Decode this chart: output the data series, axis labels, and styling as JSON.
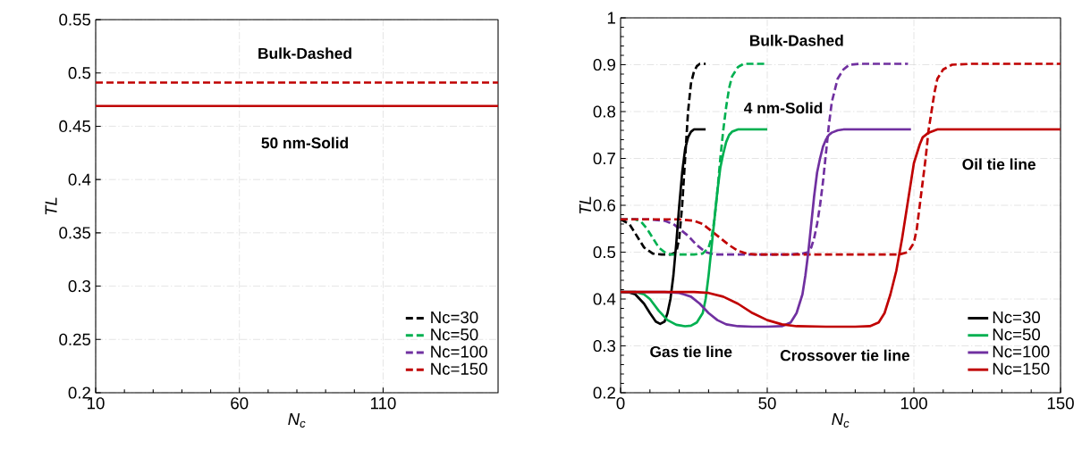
{
  "chart_data": [
    {
      "type": "line",
      "xlabel": "N$_{c}$",
      "ylabel": "TL",
      "xlim": [
        10,
        150
      ],
      "ylim": [
        0.2,
        0.55
      ],
      "xticks": [
        10,
        60,
        110
      ],
      "yticks": [
        0.2,
        0.25,
        0.3,
        0.35,
        0.4,
        0.45,
        0.5,
        0.55
      ],
      "grid": true,
      "legend": "bottom right",
      "annotations": [
        "Bulk-Dashed",
        "50 nm-Solid"
      ],
      "series": [
        {
          "name": "Nc=30",
          "color": "#000000",
          "line_style": "dashed",
          "values": [
            null
          ]
        },
        {
          "name": "Nc=50",
          "color": "#00b050",
          "line_style": "dashed",
          "values": [
            null
          ]
        },
        {
          "name": "Nc=100",
          "color": "#7030a0",
          "line_style": "dashed",
          "values": [
            null
          ]
        },
        {
          "name": "Nc=150",
          "color": "#c00000",
          "line_style": "dashed",
          "x": [
            10,
            150
          ],
          "values": [
            0.491,
            0.491
          ]
        },
        {
          "color": "#c00000",
          "line_style": "solid",
          "x": [
            10,
            150
          ],
          "values": [
            0.469,
            0.469
          ]
        }
      ]
    },
    {
      "type": "line",
      "xlabel": "N$_{c}$",
      "ylabel": "TL",
      "xlim": [
        0,
        150
      ],
      "ylim": [
        0.2,
        1
      ],
      "xticks": [
        0,
        50,
        100,
        150
      ],
      "yticks": [
        0.2,
        0.3,
        0.4,
        0.5,
        0.6,
        0.7,
        0.8,
        0.9,
        1
      ],
      "grid": true,
      "legend": "bottom right",
      "annotations": [
        "Bulk-Dashed",
        "4 nm-Solid",
        "Oil tie line",
        "Gas tie line",
        "Crossover tie line"
      ],
      "series": [
        {
          "color": "#000000",
          "line_style": "dashed",
          "x": [
            0,
            3,
            5,
            8,
            11,
            14,
            17,
            19,
            20,
            21,
            22,
            23,
            24,
            25,
            26,
            27,
            29
          ],
          "values": [
            0.57,
            0.56,
            0.54,
            0.51,
            0.497,
            0.495,
            0.495,
            0.5,
            0.53,
            0.6,
            0.7,
            0.8,
            0.86,
            0.885,
            0.897,
            0.902,
            0.902
          ]
        },
        {
          "color": "#00b050",
          "line_style": "dashed",
          "x": [
            0,
            5,
            7,
            9,
            11,
            13,
            15,
            17,
            20,
            25,
            28,
            30,
            31,
            32,
            33,
            34,
            35,
            36,
            37,
            38,
            40,
            42,
            45,
            50
          ],
          "values": [
            0.57,
            0.57,
            0.565,
            0.55,
            0.53,
            0.51,
            0.5,
            0.495,
            0.495,
            0.495,
            0.497,
            0.51,
            0.53,
            0.57,
            0.63,
            0.7,
            0.76,
            0.81,
            0.85,
            0.875,
            0.895,
            0.902,
            0.902,
            0.902
          ]
        },
        {
          "color": "#7030a0",
          "line_style": "dashed",
          "x": [
            0,
            10,
            15,
            18,
            20,
            23,
            26,
            29,
            32,
            35,
            40,
            50,
            58,
            62,
            64,
            65,
            66,
            67,
            68,
            69,
            70,
            71,
            72,
            74,
            76,
            78,
            82,
            98
          ],
          "values": [
            0.57,
            0.57,
            0.567,
            0.56,
            0.55,
            0.535,
            0.515,
            0.5,
            0.495,
            0.495,
            0.495,
            0.495,
            0.495,
            0.497,
            0.5,
            0.51,
            0.53,
            0.56,
            0.6,
            0.65,
            0.71,
            0.77,
            0.82,
            0.87,
            0.89,
            0.9,
            0.902,
            0.902
          ]
        },
        {
          "color": "#c00000",
          "line_style": "dashed",
          "x": [
            0,
            20,
            25,
            28,
            31,
            34,
            37,
            40,
            43,
            46,
            50,
            60,
            80,
            95,
            98,
            100,
            101,
            102,
            103,
            104,
            105,
            106,
            107,
            108,
            110,
            113,
            120,
            150
          ],
          "values": [
            0.57,
            0.57,
            0.567,
            0.56,
            0.545,
            0.53,
            0.515,
            0.503,
            0.497,
            0.495,
            0.495,
            0.495,
            0.495,
            0.495,
            0.5,
            0.52,
            0.55,
            0.6,
            0.65,
            0.7,
            0.76,
            0.8,
            0.84,
            0.87,
            0.89,
            0.9,
            0.902,
            0.902
          ]
        },
        {
          "name": "Nc=30",
          "color": "#000000",
          "line_style": "solid",
          "x": [
            0,
            3,
            5,
            8,
            10,
            12,
            13.5,
            15,
            16,
            17,
            18,
            19,
            20,
            21,
            22,
            23,
            24,
            25,
            26,
            29
          ],
          "values": [
            0.415,
            0.414,
            0.41,
            0.39,
            0.37,
            0.352,
            0.347,
            0.352,
            0.37,
            0.4,
            0.45,
            0.52,
            0.6,
            0.67,
            0.72,
            0.745,
            0.757,
            0.762,
            0.762,
            0.762
          ]
        },
        {
          "name": "Nc=50",
          "color": "#00b050",
          "line_style": "solid",
          "x": [
            0,
            5,
            8,
            10,
            13,
            16,
            19,
            22,
            24,
            26,
            28,
            29,
            30,
            31,
            32,
            33,
            34,
            35,
            36,
            37,
            38,
            40,
            43,
            50
          ],
          "values": [
            0.415,
            0.415,
            0.41,
            0.4,
            0.375,
            0.355,
            0.345,
            0.342,
            0.343,
            0.35,
            0.37,
            0.4,
            0.45,
            0.51,
            0.57,
            0.63,
            0.68,
            0.71,
            0.735,
            0.75,
            0.757,
            0.762,
            0.762,
            0.762
          ]
        },
        {
          "name": "Nc=100",
          "color": "#7030a0",
          "line_style": "solid",
          "x": [
            0,
            15,
            20,
            24,
            27,
            30,
            33,
            36,
            40,
            45,
            50,
            55,
            58,
            60,
            62,
            63,
            64,
            65,
            66,
            67,
            68,
            69,
            70,
            71,
            72,
            74,
            76,
            80,
            99
          ],
          "values": [
            0.415,
            0.415,
            0.413,
            0.405,
            0.39,
            0.37,
            0.355,
            0.346,
            0.342,
            0.341,
            0.341,
            0.342,
            0.35,
            0.37,
            0.41,
            0.45,
            0.5,
            0.56,
            0.62,
            0.67,
            0.7,
            0.725,
            0.74,
            0.75,
            0.755,
            0.76,
            0.762,
            0.762,
            0.762
          ]
        },
        {
          "name": "Nc=150",
          "color": "#c00000",
          "line_style": "solid",
          "x": [
            0,
            25,
            30,
            35,
            40,
            45,
            50,
            55,
            60,
            70,
            80,
            85,
            88,
            90,
            92,
            94,
            96,
            97,
            98,
            99,
            100,
            101,
            102,
            103,
            105,
            108,
            112,
            150
          ],
          "values": [
            0.415,
            0.415,
            0.413,
            0.405,
            0.39,
            0.37,
            0.355,
            0.346,
            0.342,
            0.341,
            0.341,
            0.342,
            0.35,
            0.37,
            0.41,
            0.46,
            0.53,
            0.57,
            0.61,
            0.65,
            0.69,
            0.71,
            0.73,
            0.745,
            0.755,
            0.762,
            0.762,
            0.762
          ]
        }
      ]
    }
  ]
}
